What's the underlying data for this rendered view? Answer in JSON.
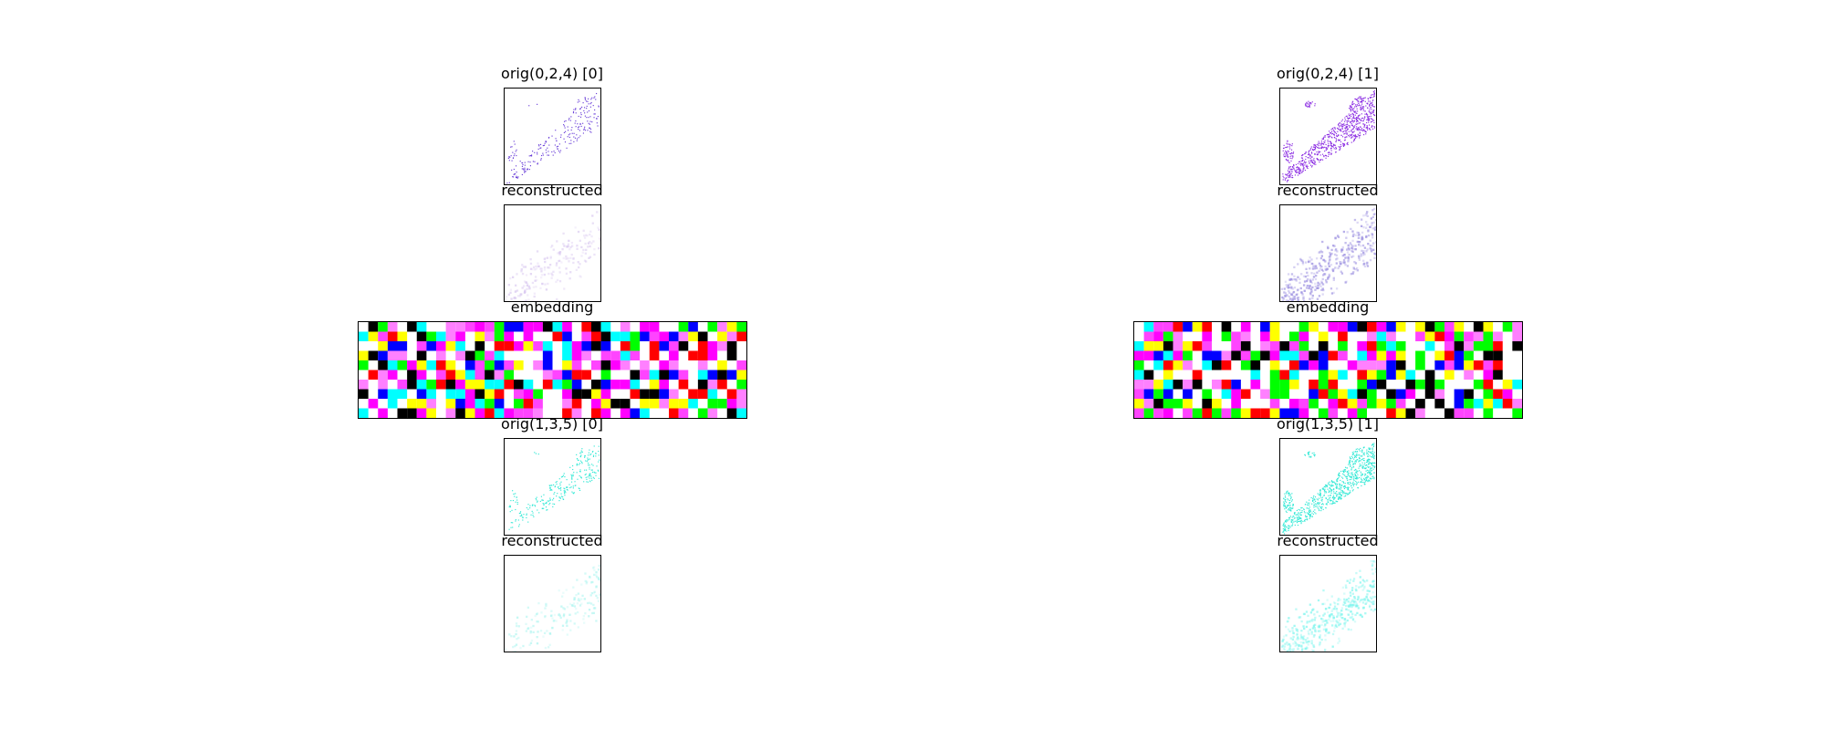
{
  "columns": [
    {
      "titles": {
        "orig_a": "orig(0,2,4) [0]",
        "recon_a": "reconstructed",
        "embedding": "embedding",
        "orig_b": "orig(1,3,5) [0]",
        "recon_b": "reconstructed"
      },
      "colors": {
        "a": "#6a3fd8",
        "a_recon": "#d9c8f0",
        "b": "#2ee8d4",
        "b_recon": "#aef5f0"
      },
      "density": {
        "orig_a": 0.25,
        "recon_a": 0.3,
        "orig_b": 0.3,
        "recon_b": 0.3
      },
      "embedding_seed": 7
    },
    {
      "titles": {
        "orig_a": "orig(0,2,4) [1]",
        "recon_a": "reconstructed",
        "embedding": "embedding",
        "orig_b": "orig(1,3,5) [1]",
        "recon_b": "reconstructed"
      },
      "colors": {
        "a": "#8a2be2",
        "a_recon": "#9b8fe0",
        "b": "#2ee8d4",
        "b_recon": "#7ff5ee"
      },
      "density": {
        "orig_a": 0.85,
        "recon_a": 0.7,
        "orig_b": 0.85,
        "recon_b": 0.7
      },
      "embedding_seed": 23
    }
  ],
  "embedding_palette": [
    "#ffffff",
    "#ffffff",
    "#ffffff",
    "#ffff00",
    "#00ffff",
    "#ff00ff",
    "#ff44ff",
    "#00ff00",
    "#ff0000",
    "#0000ff",
    "#000000",
    "#ff80ff"
  ]
}
